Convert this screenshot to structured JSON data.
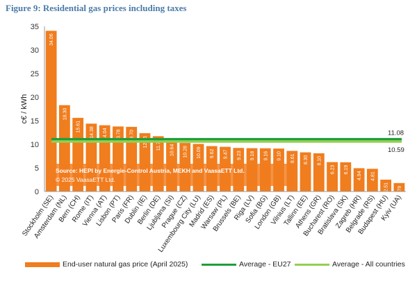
{
  "figure_title": "Figure 9: Residential gas prices including taxes",
  "colors": {
    "bar": "#F07D1E",
    "eu27": "#1F9E3A",
    "all": "#92D050"
  },
  "chart_data": {
    "type": "bar",
    "title": "Figure 9: Residential gas prices including taxes",
    "xlabel": "",
    "ylabel": "c€ / kWh",
    "ylim": [
      0,
      35
    ],
    "yticks": [
      0,
      5,
      10,
      15,
      20,
      25,
      30,
      35
    ],
    "grid": false,
    "legend_position": "bottom",
    "categories": [
      "Stockholm (SE)",
      "Amsterdam (NL)",
      "Bern (CH)",
      "Rome (IT)",
      "Vienna (AT)",
      "Lisbon (PT)",
      "Paris (FR)",
      "Dublin (IE)",
      "Berlin (DE)",
      "Ljubljana (SI)",
      "Prague (CZ)",
      "Luxembourg City (LU)",
      "Madrid (ES)",
      "Warsaw (PL)",
      "Brussels (BE)",
      "Riga (LV)",
      "Sofia (BG)",
      "London (GB)",
      "Vilnius (LT)",
      "Tallinn (EE)",
      "Athens (GR)",
      "Bucharest (RO)",
      "Bratislava (SK)",
      "Zagreb (HR)",
      "Belgrade (RS)",
      "Budapest (HU)",
      "Kyiv (UA)"
    ],
    "series": [
      {
        "name": "End-user natural gas price (April 2025)",
        "values": [
          34.06,
          18.3,
          15.61,
          14.38,
          14.04,
          13.78,
          13.7,
          12.36,
          11.72,
          10.64,
          10.28,
          10.09,
          9.62,
          9.47,
          9.23,
          9.18,
          9.16,
          9.1,
          8.61,
          8.3,
          8.1,
          6.23,
          6.19,
          4.94,
          4.81,
          2.51,
          1.79
        ]
      }
    ],
    "data_labels": [
      "34.06",
      "18.30",
      "15.61",
      "14.38",
      "14.04",
      "13.78",
      "13.70",
      "12.36",
      "11.72",
      "10.64",
      "10.28",
      "10.09",
      "9.62",
      "9.47",
      "9.23",
      "9.18",
      "9.16",
      "9.10",
      "8.61",
      "8.30",
      "8.10",
      "6.23",
      "6.19",
      "4.94",
      "4.81",
      "2.51",
      "1.79"
    ],
    "reference_lines": [
      {
        "name": "Average - EU27",
        "value": 11.08,
        "label": "11.08"
      },
      {
        "name": "Average - All countries",
        "value": 10.59,
        "label": "10.59"
      }
    ],
    "annotation": {
      "line1": "Source: HEPI by Energie-Control Austria, MEKH and VaasaETT Ltd.",
      "line2": "© 2025 VaasaETT Ltd."
    }
  },
  "legend": {
    "bar": "End-user natural gas price (April 2025)",
    "eu27": "Average - EU27",
    "all": "Average - All countries"
  }
}
